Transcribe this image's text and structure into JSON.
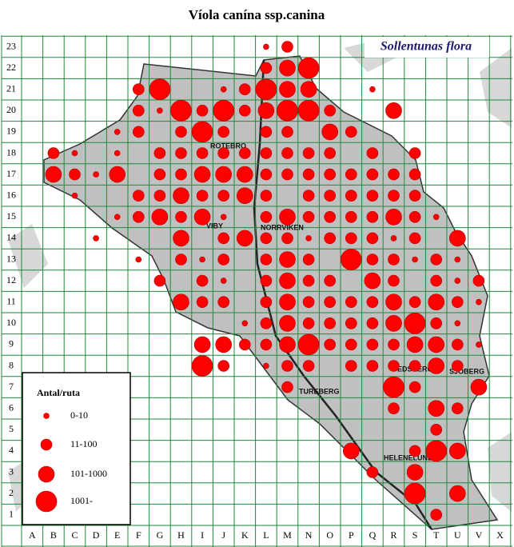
{
  "title": "Víola canína ssp.canina",
  "subtitle": "Sollentunas flora",
  "columns": [
    "A",
    "B",
    "C",
    "D",
    "E",
    "F",
    "G",
    "H",
    "I",
    "J",
    "K",
    "L",
    "M",
    "N",
    "O",
    "P",
    "Q",
    "R",
    "S",
    "T",
    "U",
    "V",
    "X"
  ],
  "rows": [
    1,
    2,
    3,
    4,
    5,
    6,
    7,
    8,
    9,
    10,
    11,
    12,
    13,
    14,
    15,
    16,
    17,
    18,
    19,
    20,
    21,
    22,
    23
  ],
  "places": [
    "ROTEBRO",
    "VIBY",
    "NORRVIKEN",
    "EDSBERG",
    "TUREBERG",
    "SJÖBERG",
    "HELENELUND"
  ],
  "legend": {
    "title": "Antal/ruta",
    "classes": [
      "0-10",
      "11-100",
      "101-1000",
      "1001-"
    ]
  },
  "dots": [
    [
      "L",
      23,
      1
    ],
    [
      "M",
      23,
      2
    ],
    [
      "L",
      22,
      2
    ],
    [
      "M",
      22,
      3
    ],
    [
      "N",
      22,
      4
    ],
    [
      "F",
      21,
      2
    ],
    [
      "G",
      21,
      4
    ],
    [
      "J",
      21,
      1
    ],
    [
      "K",
      21,
      2
    ],
    [
      "L",
      21,
      4
    ],
    [
      "M",
      21,
      3
    ],
    [
      "N",
      21,
      3
    ],
    [
      "Q",
      21,
      1
    ],
    [
      "F",
      20,
      2
    ],
    [
      "G",
      20,
      1
    ],
    [
      "H",
      20,
      4
    ],
    [
      "I",
      20,
      2
    ],
    [
      "J",
      20,
      4
    ],
    [
      "K",
      20,
      2
    ],
    [
      "L",
      20,
      3
    ],
    [
      "M",
      20,
      4
    ],
    [
      "N",
      20,
      4
    ],
    [
      "O",
      20,
      2
    ],
    [
      "R",
      20,
      3
    ],
    [
      "E",
      19,
      1
    ],
    [
      "F",
      19,
      2
    ],
    [
      "H",
      19,
      2
    ],
    [
      "I",
      19,
      4
    ],
    [
      "J",
      19,
      2
    ],
    [
      "L",
      19,
      2
    ],
    [
      "M",
      19,
      2
    ],
    [
      "O",
      19,
      3
    ],
    [
      "P",
      19,
      2
    ],
    [
      "B",
      18,
      2
    ],
    [
      "C",
      18,
      1
    ],
    [
      "E",
      18,
      1
    ],
    [
      "G",
      18,
      2
    ],
    [
      "H",
      18,
      2
    ],
    [
      "I",
      18,
      2
    ],
    [
      "J",
      18,
      2
    ],
    [
      "K",
      18,
      2
    ],
    [
      "L",
      18,
      2
    ],
    [
      "M",
      18,
      2
    ],
    [
      "N",
      18,
      2
    ],
    [
      "O",
      18,
      2
    ],
    [
      "Q",
      18,
      2
    ],
    [
      "S",
      18,
      2
    ],
    [
      "B",
      17,
      3
    ],
    [
      "C",
      17,
      2
    ],
    [
      "D",
      17,
      1
    ],
    [
      "E",
      17,
      3
    ],
    [
      "G",
      17,
      2
    ],
    [
      "H",
      17,
      2
    ],
    [
      "I",
      17,
      3
    ],
    [
      "J",
      17,
      3
    ],
    [
      "K",
      17,
      3
    ],
    [
      "L",
      17,
      2
    ],
    [
      "M",
      17,
      2
    ],
    [
      "N",
      17,
      2
    ],
    [
      "O",
      17,
      2
    ],
    [
      "P",
      17,
      2
    ],
    [
      "Q",
      17,
      2
    ],
    [
      "R",
      17,
      2
    ],
    [
      "S",
      17,
      2
    ],
    [
      "C",
      16,
      1
    ],
    [
      "F",
      16,
      2
    ],
    [
      "G",
      16,
      2
    ],
    [
      "H",
      16,
      3
    ],
    [
      "I",
      16,
      2
    ],
    [
      "J",
      16,
      2
    ],
    [
      "K",
      16,
      3
    ],
    [
      "L",
      16,
      2
    ],
    [
      "N",
      16,
      2
    ],
    [
      "O",
      16,
      2
    ],
    [
      "P",
      16,
      2
    ],
    [
      "Q",
      16,
      2
    ],
    [
      "R",
      16,
      2
    ],
    [
      "S",
      16,
      2
    ],
    [
      "E",
      15,
      1
    ],
    [
      "F",
      15,
      2
    ],
    [
      "G",
      15,
      3
    ],
    [
      "H",
      15,
      2
    ],
    [
      "I",
      15,
      3
    ],
    [
      "J",
      15,
      1
    ],
    [
      "L",
      15,
      2
    ],
    [
      "M",
      15,
      3
    ],
    [
      "N",
      15,
      2
    ],
    [
      "O",
      15,
      2
    ],
    [
      "P",
      15,
      2
    ],
    [
      "Q",
      15,
      2
    ],
    [
      "R",
      15,
      3
    ],
    [
      "S",
      15,
      2
    ],
    [
      "T",
      15,
      1
    ],
    [
      "D",
      14,
      1
    ],
    [
      "H",
      14,
      3
    ],
    [
      "J",
      14,
      2
    ],
    [
      "K",
      14,
      3
    ],
    [
      "L",
      14,
      2
    ],
    [
      "M",
      14,
      2
    ],
    [
      "N",
      14,
      1
    ],
    [
      "O",
      14,
      2
    ],
    [
      "P",
      14,
      2
    ],
    [
      "Q",
      14,
      2
    ],
    [
      "R",
      14,
      1
    ],
    [
      "S",
      14,
      2
    ],
    [
      "U",
      14,
      3
    ],
    [
      "F",
      13,
      1
    ],
    [
      "H",
      13,
      2
    ],
    [
      "I",
      13,
      1
    ],
    [
      "J",
      13,
      2
    ],
    [
      "L",
      13,
      2
    ],
    [
      "M",
      13,
      3
    ],
    [
      "N",
      13,
      2
    ],
    [
      "P",
      13,
      4
    ],
    [
      "Q",
      13,
      2
    ],
    [
      "R",
      13,
      2
    ],
    [
      "S",
      13,
      1
    ],
    [
      "T",
      13,
      2
    ],
    [
      "U",
      13,
      1
    ],
    [
      "G",
      12,
      2
    ],
    [
      "I",
      12,
      2
    ],
    [
      "J",
      12,
      1
    ],
    [
      "L",
      12,
      2
    ],
    [
      "M",
      12,
      3
    ],
    [
      "N",
      12,
      2
    ],
    [
      "O",
      12,
      2
    ],
    [
      "Q",
      12,
      3
    ],
    [
      "R",
      12,
      2
    ],
    [
      "T",
      12,
      2
    ],
    [
      "U",
      12,
      1
    ],
    [
      "V",
      12,
      2
    ],
    [
      "H",
      11,
      3
    ],
    [
      "I",
      11,
      2
    ],
    [
      "J",
      11,
      2
    ],
    [
      "L",
      11,
      2
    ],
    [
      "M",
      11,
      3
    ],
    [
      "N",
      11,
      2
    ],
    [
      "O",
      11,
      2
    ],
    [
      "P",
      11,
      2
    ],
    [
      "Q",
      11,
      2
    ],
    [
      "R",
      11,
      3
    ],
    [
      "S",
      11,
      2
    ],
    [
      "T",
      11,
      3
    ],
    [
      "U",
      11,
      2
    ],
    [
      "V",
      11,
      1
    ],
    [
      "K",
      10,
      1
    ],
    [
      "L",
      10,
      2
    ],
    [
      "M",
      10,
      3
    ],
    [
      "N",
      10,
      2
    ],
    [
      "O",
      10,
      2
    ],
    [
      "P",
      10,
      2
    ],
    [
      "Q",
      10,
      2
    ],
    [
      "R",
      10,
      3
    ],
    [
      "S",
      10,
      4
    ],
    [
      "T",
      10,
      2
    ],
    [
      "U",
      10,
      1
    ],
    [
      "I",
      9,
      3
    ],
    [
      "J",
      9,
      3
    ],
    [
      "K",
      9,
      2
    ],
    [
      "L",
      9,
      2
    ],
    [
      "M",
      9,
      3
    ],
    [
      "N",
      9,
      4
    ],
    [
      "O",
      9,
      2
    ],
    [
      "P",
      9,
      2
    ],
    [
      "Q",
      9,
      2
    ],
    [
      "R",
      9,
      2
    ],
    [
      "S",
      9,
      3
    ],
    [
      "T",
      9,
      3
    ],
    [
      "U",
      9,
      2
    ],
    [
      "V",
      9,
      1
    ],
    [
      "I",
      8,
      4
    ],
    [
      "J",
      8,
      2
    ],
    [
      "L",
      8,
      1
    ],
    [
      "M",
      8,
      2
    ],
    [
      "N",
      8,
      2
    ],
    [
      "P",
      8,
      2
    ],
    [
      "Q",
      8,
      2
    ],
    [
      "R",
      8,
      2
    ],
    [
      "S",
      8,
      2
    ],
    [
      "T",
      8,
      3
    ],
    [
      "U",
      8,
      2
    ],
    [
      "M",
      7,
      2
    ],
    [
      "R",
      7,
      4
    ],
    [
      "S",
      7,
      2
    ],
    [
      "V",
      7,
      3
    ],
    [
      "R",
      6,
      2
    ],
    [
      "T",
      6,
      3
    ],
    [
      "U",
      6,
      2
    ],
    [
      "T",
      5,
      2
    ],
    [
      "P",
      4,
      3
    ],
    [
      "S",
      4,
      2
    ],
    [
      "T",
      4,
      4
    ],
    [
      "U",
      4,
      3
    ],
    [
      "Q",
      3,
      2
    ],
    [
      "S",
      3,
      3
    ],
    [
      "S",
      2,
      4
    ],
    [
      "U",
      2,
      3
    ],
    [
      "T",
      1,
      2
    ]
  ]
}
